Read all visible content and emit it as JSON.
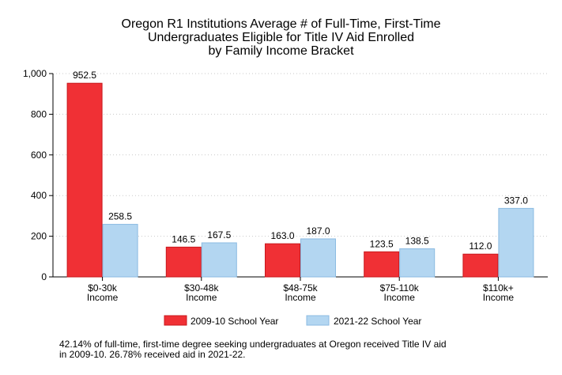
{
  "chart_data": {
    "type": "bar",
    "title_lines": [
      "Oregon R1 Institutions Average # of Full-Time, First-Time",
      "Undergraduates Eligible for Title IV Aid Enrolled",
      "by Family Income Bracket"
    ],
    "categories": [
      [
        "$0-30k",
        "Income"
      ],
      [
        "$30-48k",
        "Income"
      ],
      [
        "$48-75k",
        "Income"
      ],
      [
        "$75-110k",
        "Income"
      ],
      [
        "$110k+",
        "Income"
      ]
    ],
    "series": [
      {
        "name": "2009-10 School Year",
        "color": "#f03035",
        "values": [
          952.5,
          146.5,
          163.0,
          123.5,
          112.0
        ],
        "labels": [
          "952.5",
          "146.5",
          "163.0",
          "123.5",
          "112.0"
        ]
      },
      {
        "name": "2021-22 School Year",
        "color": "#b3d6f1",
        "values": [
          258.5,
          167.5,
          187.0,
          138.5,
          337.0
        ],
        "labels": [
          "258.5",
          "167.5",
          "187.0",
          "138.5",
          "337.0"
        ]
      }
    ],
    "ylim": [
      0,
      1000
    ],
    "yticks": [
      0,
      200,
      400,
      600,
      800,
      1000
    ],
    "ytick_labels": [
      "0",
      "200",
      "400",
      "600",
      "800",
      "1,000"
    ],
    "grid": "horizontal dotted",
    "legend_position": "bottom"
  },
  "footnote_lines": [
    "42.14% of full-time, first-time degree seeking undergraduates at Oregon received Title IV aid",
    "in 2009-10. 26.78% received aid in 2021-22."
  ]
}
